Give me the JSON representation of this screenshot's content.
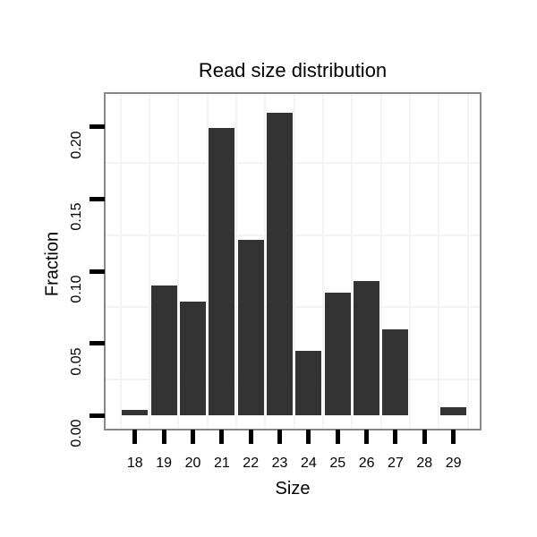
{
  "chart_data": {
    "type": "bar",
    "title": "Read size distribution",
    "xlabel": "Size",
    "ylabel": "Fraction",
    "categories": [
      18,
      19,
      20,
      21,
      22,
      23,
      24,
      25,
      26,
      27,
      28,
      29
    ],
    "values": [
      0.004,
      0.09,
      0.079,
      0.199,
      0.122,
      0.21,
      0.045,
      0.085,
      0.093,
      0.06,
      0.0,
      0.006
    ],
    "y_tick_values": [
      0.0,
      0.05,
      0.1,
      0.15,
      0.2
    ],
    "y_tick_labels": [
      "0.00",
      "0.05",
      "0.10",
      "0.15",
      "0.20"
    ],
    "x_tick_labels": [
      "18",
      "19",
      "20",
      "21",
      "22",
      "23",
      "24",
      "25",
      "26",
      "27",
      "28",
      "29"
    ],
    "ylim": [
      -0.011,
      0.222
    ],
    "grid": "minor-gridlines-only",
    "legend": "none",
    "colors": {
      "bar": "#333333",
      "panel_border": "#898989",
      "gridline": "#f4f4f4",
      "axis_tick": "#000000",
      "text": "#000000",
      "background": "#ffffff"
    }
  }
}
